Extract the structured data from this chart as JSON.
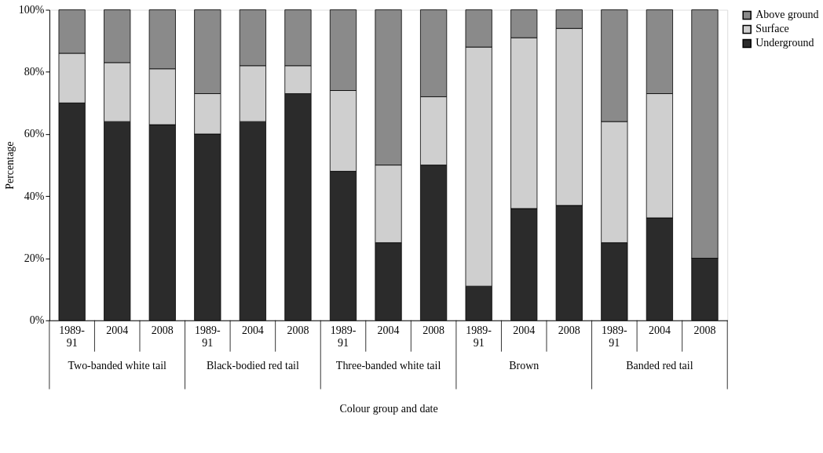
{
  "chart_data": {
    "type": "bar",
    "stacked": true,
    "xlabel": "Colour group and date",
    "ylabel": "Percentage",
    "categories": [
      "1989-91",
      "2004",
      "2008",
      "1989-91",
      "2004",
      "2008",
      "1989-91",
      "2004",
      "2008",
      "1989-91",
      "2004",
      "2008",
      "1989-91",
      "2004",
      "2008"
    ],
    "series": [
      {
        "name": "Underground",
        "color": "#2b2b2b",
        "values": [
          70,
          64,
          63,
          60,
          64,
          73,
          48,
          25,
          50,
          11,
          36,
          37,
          25,
          33,
          20
        ]
      },
      {
        "name": "Surface",
        "color": "#cfcfcf",
        "values": [
          16,
          19,
          18,
          13,
          18,
          9,
          26,
          25,
          22,
          77,
          55,
          57,
          39,
          40,
          0
        ]
      },
      {
        "name": "Above ground",
        "color": "#8a8a8a",
        "values": [
          14,
          17,
          19,
          27,
          18,
          18,
          26,
          50,
          28,
          12,
          9,
          6,
          36,
          27,
          80
        ]
      }
    ],
    "ylim": [
      0,
      100
    ],
    "yticks": [
      {
        "value": 0,
        "label": "0%"
      },
      {
        "value": 20,
        "label": "20%"
      },
      {
        "value": 40,
        "label": "40%"
      },
      {
        "value": 60,
        "label": "60%"
      },
      {
        "value": 80,
        "label": "80%"
      },
      {
        "value": 100,
        "label": "100%"
      }
    ],
    "grid": false,
    "legend": "right",
    "annotations": [
      "Two-banded white tail",
      "Black-bodied red tail",
      "Three-banded white tail",
      "Brown",
      "Banded red tail"
    ]
  }
}
